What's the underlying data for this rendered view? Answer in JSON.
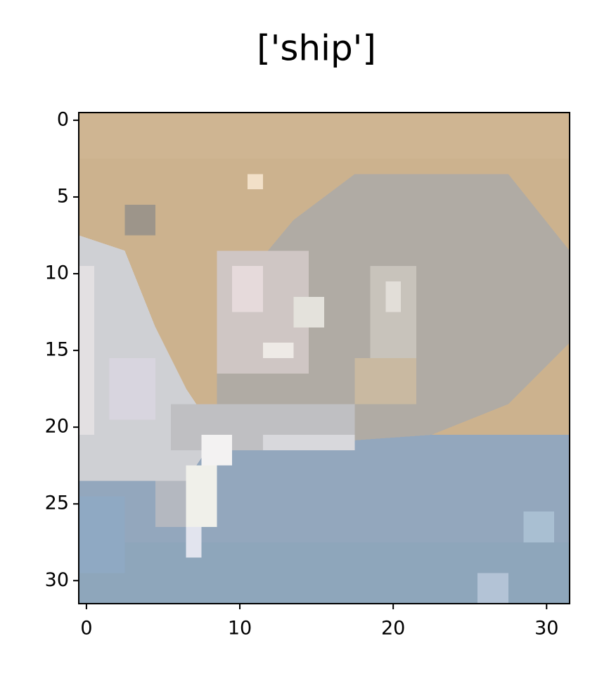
{
  "chart_data": {
    "type": "image",
    "title": "['ship']",
    "xlim": [
      -0.5,
      31.5
    ],
    "ylim": [
      31.5,
      -0.5
    ],
    "xticks": [
      0,
      10,
      20,
      30
    ],
    "yticks": [
      0,
      5,
      10,
      15,
      20,
      25,
      30
    ]
  }
}
